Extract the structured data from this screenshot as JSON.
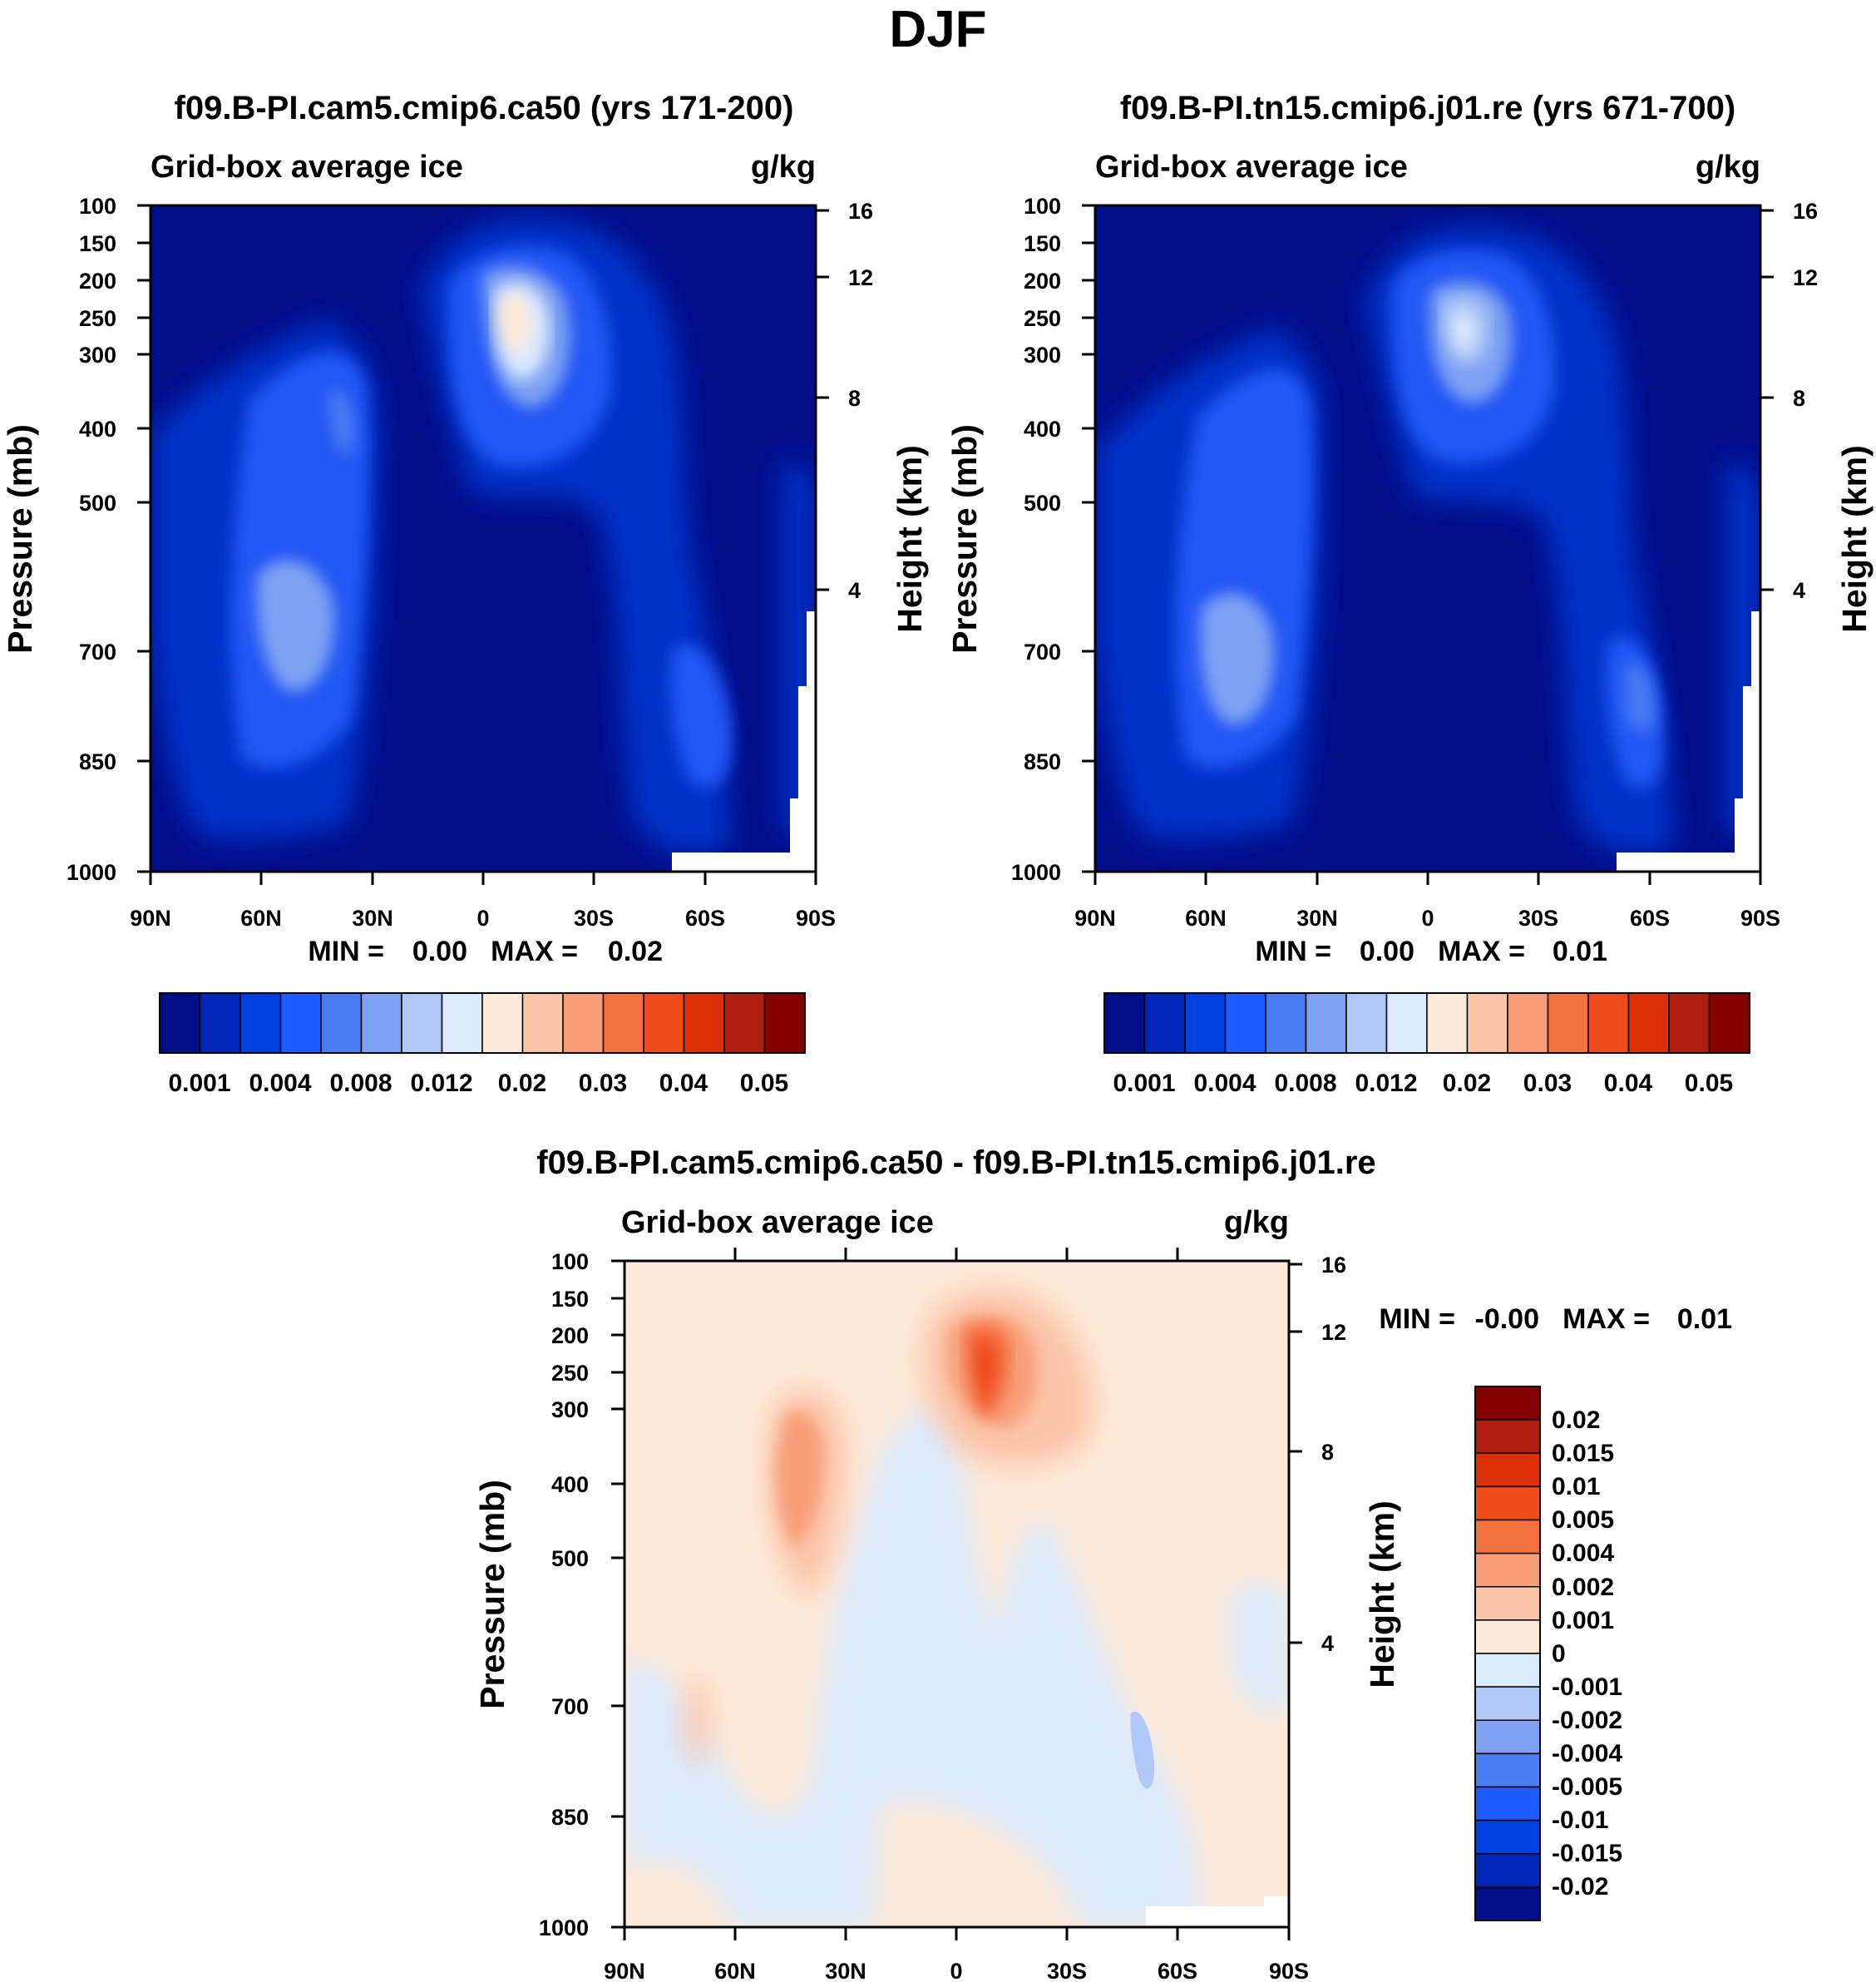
{
  "figure_title": "DJF",
  "chart_data": [
    {
      "type": "heatmap",
      "title": "f09.B-PI.cam5.cmip6.ca50 (yrs 171-200)",
      "left_string": "Grid-box average ice",
      "right_string": "g/kg",
      "xlabel": "",
      "ylabel": "Pressure (mb)",
      "ylabel_right": "Height (km)",
      "x_ticks": [
        "90N",
        "60N",
        "30N",
        "0",
        "30S",
        "60S",
        "90S"
      ],
      "y_ticks": [
        "100",
        "150",
        "200",
        "250",
        "300",
        "400",
        "500",
        "700",
        "850",
        "1000"
      ],
      "y_ticks_right": [
        "16",
        "12",
        "8",
        "4"
      ],
      "min_label": "MIN =",
      "min_value": "0.00",
      "max_label": "MAX =",
      "max_value": "0.02",
      "colorbar": {
        "orientation": "horizontal",
        "labels": [
          "0.001",
          "0.004",
          "0.008",
          "0.012",
          "0.02",
          "0.03",
          "0.04",
          "0.05"
        ],
        "colors": [
          "#000e8a",
          "#0028b8",
          "#0040e0",
          "#1f5cff",
          "#4a7cf2",
          "#7ea2f3",
          "#b0c8f8",
          "#dceafd",
          "#fde9d8",
          "#fbc4a8",
          "#f79e78",
          "#f3703f",
          "#ef4a1a",
          "#dc2e08",
          "#b01e10",
          "#840000"
        ]
      },
      "features": [
        {
          "name": "tropical upper-level maximum",
          "lat": 5,
          "p": 260,
          "value": 0.02
        },
        {
          "name": "NH mid-latitude band",
          "lat": 45,
          "p": 700,
          "value": 0.012
        },
        {
          "name": "SH mid-latitude band",
          "lat": -60,
          "p": 750,
          "value": 0.006
        }
      ]
    },
    {
      "type": "heatmap",
      "title": "f09.B-PI.tn15.cmip6.j01.re (yrs 671-700)",
      "left_string": "Grid-box average ice",
      "right_string": "g/kg",
      "xlabel": "",
      "ylabel": "Pressure (mb)",
      "ylabel_right": "Height (km)",
      "x_ticks": [
        "90N",
        "60N",
        "30N",
        "0",
        "30S",
        "60S",
        "90S"
      ],
      "y_ticks": [
        "100",
        "150",
        "200",
        "250",
        "300",
        "400",
        "500",
        "700",
        "850",
        "1000"
      ],
      "y_ticks_right": [
        "16",
        "12",
        "8",
        "4"
      ],
      "min_label": "MIN =",
      "min_value": "0.00",
      "max_label": "MAX =",
      "max_value": "0.01",
      "colorbar": {
        "orientation": "horizontal",
        "labels": [
          "0.001",
          "0.004",
          "0.008",
          "0.012",
          "0.02",
          "0.03",
          "0.04",
          "0.05"
        ],
        "colors": [
          "#000e8a",
          "#0028b8",
          "#0040e0",
          "#1f5cff",
          "#4a7cf2",
          "#7ea2f3",
          "#b0c8f8",
          "#dceafd",
          "#fde9d8",
          "#fbc4a8",
          "#f79e78",
          "#f3703f",
          "#ef4a1a",
          "#dc2e08",
          "#b01e10",
          "#840000"
        ]
      },
      "features": [
        {
          "name": "tropical upper-level maximum",
          "lat": 5,
          "p": 260,
          "value": 0.012
        },
        {
          "name": "NH mid-latitude band",
          "lat": 45,
          "p": 700,
          "value": 0.012
        },
        {
          "name": "SH mid-latitude band",
          "lat": -60,
          "p": 750,
          "value": 0.008
        }
      ]
    },
    {
      "type": "heatmap",
      "title": "f09.B-PI.cam5.cmip6.ca50 - f09.B-PI.tn15.cmip6.j01.re",
      "left_string": "Grid-box average ice",
      "right_string": "g/kg",
      "xlabel": "",
      "ylabel": "Pressure (mb)",
      "ylabel_right": "Height (km)",
      "x_ticks": [
        "90N",
        "60N",
        "30N",
        "0",
        "30S",
        "60S",
        "90S"
      ],
      "y_ticks": [
        "100",
        "150",
        "200",
        "250",
        "300",
        "400",
        "500",
        "700",
        "850",
        "1000"
      ],
      "y_ticks_right": [
        "16",
        "12",
        "8",
        "4"
      ],
      "min_label": "MIN =",
      "min_value": "-0.00",
      "max_label": "MAX =",
      "max_value": "0.01",
      "colorbar": {
        "orientation": "vertical",
        "labels": [
          "0.02",
          "0.015",
          "0.01",
          "0.005",
          "0.004",
          "0.002",
          "0.001",
          "0",
          "-0.001",
          "-0.002",
          "-0.004",
          "-0.005",
          "-0.01",
          "-0.015",
          "-0.02"
        ],
        "colors": [
          "#840000",
          "#b01e10",
          "#dc2e08",
          "#ef4a1a",
          "#f3703f",
          "#f79e78",
          "#fbc4a8",
          "#fde9d8",
          "#dceafd",
          "#b0c8f8",
          "#7ea2f3",
          "#4a7cf2",
          "#1f5cff",
          "#0040e0",
          "#0028b8",
          "#000e8a"
        ]
      },
      "features": [
        {
          "name": "tropical upper-level increase",
          "lat": 8,
          "p": 230,
          "value": 0.01
        },
        {
          "name": "NH mid-latitude increase",
          "lat": 40,
          "p": 420,
          "value": 0.002
        },
        {
          "name": "SH decrease",
          "lat": -50,
          "p": 780,
          "value": -0.002
        }
      ]
    }
  ]
}
